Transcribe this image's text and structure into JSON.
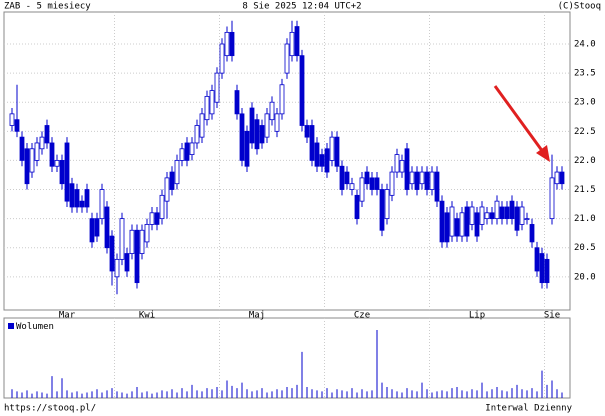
{
  "chart_data": {
    "type": "candlestick",
    "title": "ZAB - 5 miesiecy",
    "subtitle": "8 Sie 2025 12:04 UTC+2",
    "source": "(C)Stooq",
    "footer_left": "https://stooq.pl/",
    "footer_right": "Interwal Dzienny",
    "color": "#0000cc",
    "ylim": [
      19.43,
      24.55
    ],
    "yticks": [
      {
        "value": 20,
        "label": "20.0"
      },
      {
        "value": 20.5,
        "label": "20.5"
      },
      {
        "value": 21,
        "label": "21.0"
      },
      {
        "value": 21.5,
        "label": "21.5"
      },
      {
        "value": 22,
        "label": "22.0"
      },
      {
        "value": 22.5,
        "label": "22.5"
      },
      {
        "value": 23,
        "label": "23.0"
      },
      {
        "value": 23.5,
        "label": "23.5"
      },
      {
        "value": 24,
        "label": "24.0"
      }
    ],
    "xticks": [
      {
        "value": 11,
        "label": "Mar"
      },
      {
        "value": 27,
        "label": "Kwi"
      },
      {
        "value": 49,
        "label": "Maj"
      },
      {
        "value": 70,
        "label": "Cze"
      },
      {
        "value": 93,
        "label": "Lip"
      },
      {
        "value": 108,
        "label": "Sie"
      }
    ],
    "xgrid": [
      21,
      42,
      63,
      84,
      107
    ],
    "grid": true,
    "open": [
      22.6,
      22.7,
      22.4,
      22.2,
      21.8,
      22.0,
      22.2,
      22.6,
      22.3,
      21.9,
      22.0,
      22.3,
      21.6,
      21.5,
      21.3,
      21.5,
      21.0,
      21.0,
      21.0,
      21.2,
      20.7,
      20.0,
      20.3,
      20.4,
      20.4,
      20.8,
      20.4,
      20.6,
      20.9,
      21.1,
      21.0,
      21.3,
      21.8,
      21.6,
      22.0,
      22.3,
      22.1,
      22.3,
      22.4,
      22.7,
      22.8,
      23.0,
      23.5,
      23.8,
      24.2,
      23.2,
      22.8,
      22.5,
      22.9,
      22.7,
      22.6,
      22.4,
      22.7,
      22.5,
      22.8,
      23.5,
      23.8,
      24.3,
      23.8,
      22.6,
      22.6,
      22.3,
      22.1,
      22.2,
      22.0,
      22.4,
      21.9,
      21.8,
      21.5,
      21.4,
      21.3,
      21.8,
      21.7,
      21.7,
      21.5,
      21.0,
      21.4,
      21.8,
      21.8,
      22.2,
      21.6,
      21.8,
      21.6,
      21.8,
      21.5,
      21.8,
      21.3,
      21.1,
      20.7,
      21.0,
      20.7,
      21.2,
      20.9,
      21.1,
      20.9,
      21.0,
      21.1,
      21.0,
      21.2,
      21.2,
      21.3,
      21.2,
      20.9,
      21.0,
      20.9,
      20.5,
      20.4,
      20.3,
      21.0,
      21.6,
      21.8
    ],
    "high": [
      22.9,
      23.3,
      22.5,
      22.3,
      22.3,
      22.4,
      22.5,
      22.7,
      22.4,
      22.1,
      22.1,
      22.4,
      21.7,
      21.6,
      21.4,
      21.6,
      21.1,
      21.1,
      21.6,
      21.3,
      20.8,
      20.4,
      21.1,
      20.5,
      20.9,
      20.9,
      20.9,
      21.0,
      21.2,
      21.2,
      21.5,
      21.8,
      21.9,
      22.1,
      22.3,
      22.4,
      22.4,
      22.7,
      22.9,
      23.2,
      23.3,
      23.6,
      24.1,
      24.3,
      24.4,
      23.3,
      22.9,
      22.6,
      23.0,
      22.8,
      22.7,
      22.9,
      23.1,
      22.9,
      23.4,
      24.1,
      24.4,
      24.4,
      23.9,
      22.7,
      22.7,
      22.4,
      22.2,
      22.3,
      22.5,
      22.5,
      22.0,
      21.9,
      21.7,
      21.5,
      21.8,
      21.9,
      21.8,
      21.8,
      21.6,
      21.6,
      21.9,
      22.2,
      22.1,
      22.3,
      21.9,
      21.9,
      21.9,
      21.9,
      21.9,
      21.9,
      21.4,
      21.2,
      21.3,
      21.1,
      21.2,
      21.3,
      21.3,
      21.2,
      21.3,
      21.2,
      21.2,
      21.4,
      21.3,
      21.3,
      21.4,
      21.3,
      21.3,
      21.1,
      21.0,
      20.6,
      20.5,
      20.4,
      22.1,
      21.9,
      21.9
    ],
    "low": [
      22.5,
      22.4,
      21.9,
      21.5,
      21.7,
      21.9,
      22.1,
      22.2,
      21.8,
      21.8,
      21.5,
      21.2,
      21.1,
      21.1,
      21.1,
      21.1,
      20.5,
      20.6,
      20.9,
      20.4,
      19.85,
      19.7,
      20.2,
      20.0,
      20.3,
      19.8,
      20.3,
      20.5,
      20.8,
      20.8,
      20.9,
      21.0,
      21.4,
      21.5,
      21.9,
      21.9,
      22.0,
      22.2,
      22.3,
      22.6,
      22.7,
      22.9,
      23.4,
      23.7,
      23.7,
      22.7,
      21.9,
      21.8,
      22.2,
      22.1,
      22.2,
      22.3,
      22.6,
      22.4,
      22.7,
      23.4,
      23.7,
      23.7,
      22.5,
      22.3,
      21.9,
      21.8,
      21.8,
      21.7,
      21.9,
      21.8,
      21.4,
      21.5,
      21.4,
      20.9,
      21.2,
      21.5,
      21.4,
      21.4,
      20.7,
      20.9,
      21.3,
      21.7,
      21.7,
      21.4,
      21.5,
      21.4,
      21.5,
      21.4,
      21.4,
      21.2,
      20.5,
      20.5,
      20.6,
      20.6,
      20.6,
      20.6,
      20.8,
      20.6,
      20.8,
      20.9,
      20.9,
      20.9,
      20.9,
      20.9,
      20.9,
      20.7,
      20.8,
      20.9,
      20.5,
      20.0,
      19.8,
      19.8,
      20.9,
      21.5,
      21.5
    ],
    "close": [
      22.8,
      22.5,
      22.0,
      21.6,
      22.2,
      22.3,
      22.4,
      22.3,
      21.9,
      22.0,
      21.6,
      21.3,
      21.2,
      21.2,
      21.2,
      21.2,
      20.6,
      20.7,
      21.5,
      20.5,
      20.1,
      20.3,
      21.0,
      20.1,
      20.8,
      19.9,
      20.8,
      20.9,
      21.1,
      20.9,
      21.4,
      21.7,
      21.5,
      22.0,
      22.2,
      22.0,
      22.3,
      22.6,
      22.8,
      23.1,
      23.2,
      23.5,
      24.0,
      24.2,
      23.8,
      22.8,
      22.0,
      21.9,
      22.3,
      22.2,
      22.3,
      22.8,
      23.0,
      22.8,
      23.3,
      24.0,
      24.2,
      23.8,
      22.6,
      22.4,
      22.0,
      21.9,
      21.9,
      21.8,
      22.4,
      21.9,
      21.5,
      21.6,
      21.6,
      21.0,
      21.7,
      21.6,
      21.5,
      21.5,
      20.8,
      21.5,
      21.8,
      22.1,
      22.0,
      21.5,
      21.8,
      21.5,
      21.8,
      21.5,
      21.8,
      21.3,
      20.6,
      20.6,
      21.2,
      20.7,
      21.1,
      20.7,
      21.2,
      20.7,
      21.2,
      21.1,
      21.0,
      21.3,
      21.0,
      21.0,
      21.0,
      20.8,
      21.2,
      21.0,
      20.6,
      20.1,
      19.9,
      19.9,
      21.7,
      21.8,
      21.6
    ],
    "volume": {
      "name": "Wolumen",
      "color": "#0000cc",
      "values": [
        8,
        6,
        5,
        7,
        4,
        6,
        5,
        4,
        20,
        6,
        18,
        7,
        5,
        6,
        4,
        5,
        6,
        8,
        5,
        7,
        9,
        6,
        5,
        4,
        6,
        10,
        5,
        6,
        4,
        5,
        7,
        6,
        8,
        5,
        9,
        6,
        12,
        7,
        6,
        9,
        8,
        10,
        7,
        16,
        11,
        9,
        14,
        8,
        6,
        7,
        9,
        5,
        6,
        8,
        7,
        10,
        9,
        12,
        42,
        10,
        8,
        7,
        6,
        9,
        5,
        8,
        7,
        6,
        9,
        5,
        8,
        6,
        7,
        62,
        14,
        10,
        8,
        6,
        5,
        9,
        7,
        6,
        14,
        8,
        5,
        6,
        7,
        6,
        9,
        10,
        7,
        6,
        8,
        7,
        14,
        6,
        8,
        10,
        7,
        6,
        9,
        12,
        8,
        7,
        9,
        6,
        25,
        12,
        16,
        8,
        5
      ]
    }
  }
}
